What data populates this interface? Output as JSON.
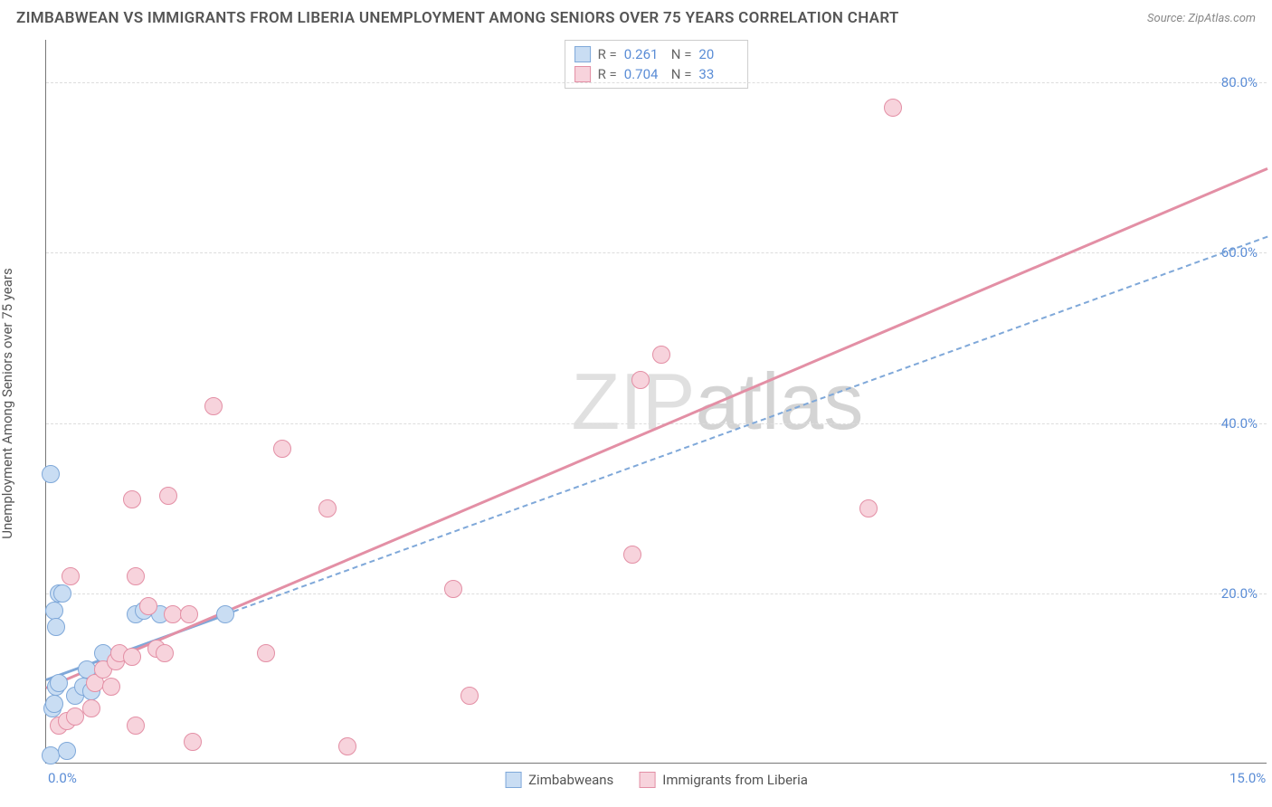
{
  "title": "ZIMBABWEAN VS IMMIGRANTS FROM LIBERIA UNEMPLOYMENT AMONG SENIORS OVER 75 YEARS CORRELATION CHART",
  "source": "Source: ZipAtlas.com",
  "y_axis_label": "Unemployment Among Seniors over 75 years",
  "watermark": {
    "bold": "ZIP",
    "light": "atlas"
  },
  "chart": {
    "type": "scatter",
    "xlim": [
      0,
      15
    ],
    "ylim": [
      0,
      85
    ],
    "x_ticks": [
      {
        "value": 0,
        "label": "0.0%"
      },
      {
        "value": 15,
        "label": "15.0%"
      }
    ],
    "y_ticks": [
      {
        "value": 20,
        "label": "20.0%"
      },
      {
        "value": 40,
        "label": "40.0%"
      },
      {
        "value": 60,
        "label": "60.0%"
      },
      {
        "value": 80,
        "label": "80.0%"
      }
    ],
    "grid_color": "#dddddd",
    "background_color": "#ffffff",
    "axis_color": "#777777",
    "tick_label_color": "#5b8dd6",
    "point_radius": 10,
    "series": [
      {
        "key": "zimbabweans",
        "label": "Zimbabweans",
        "fill": "#c9ddf3",
        "stroke": "#7fa8d9",
        "R": "0.261",
        "N": "20",
        "regression": {
          "x1": 0,
          "y1": 10,
          "x2": 15,
          "y2": 62,
          "style": "dashed",
          "solid_until_x": 2.3
        },
        "points": [
          [
            0.05,
            1.0
          ],
          [
            0.08,
            6.5
          ],
          [
            0.1,
            7.0
          ],
          [
            0.12,
            9.0
          ],
          [
            0.15,
            9.5
          ],
          [
            0.1,
            18.0
          ],
          [
            0.12,
            16.0
          ],
          [
            0.15,
            20.0
          ],
          [
            0.2,
            20.0
          ],
          [
            0.05,
            34.0
          ],
          [
            0.35,
            8.0
          ],
          [
            0.45,
            9.0
          ],
          [
            0.5,
            11.0
          ],
          [
            0.55,
            8.5
          ],
          [
            0.7,
            13.0
          ],
          [
            1.1,
            17.5
          ],
          [
            1.2,
            18.0
          ],
          [
            1.4,
            17.5
          ],
          [
            2.2,
            17.5
          ],
          [
            0.25,
            1.5
          ]
        ]
      },
      {
        "key": "liberia",
        "label": "Immigrants from Liberia",
        "fill": "#f7d3dc",
        "stroke": "#e38fa5",
        "R": "0.704",
        "N": "33",
        "regression": {
          "x1": 0,
          "y1": 9,
          "x2": 15,
          "y2": 70,
          "style": "solid"
        },
        "points": [
          [
            0.15,
            4.5
          ],
          [
            0.25,
            5.0
          ],
          [
            0.35,
            5.5
          ],
          [
            0.55,
            6.5
          ],
          [
            0.6,
            9.5
          ],
          [
            0.7,
            11.0
          ],
          [
            0.8,
            9.0
          ],
          [
            0.85,
            12.0
          ],
          [
            0.9,
            13.0
          ],
          [
            1.05,
            12.5
          ],
          [
            1.1,
            4.5
          ],
          [
            1.35,
            13.5
          ],
          [
            1.45,
            13.0
          ],
          [
            1.55,
            17.5
          ],
          [
            1.75,
            17.5
          ],
          [
            1.8,
            2.5
          ],
          [
            0.3,
            22.0
          ],
          [
            1.1,
            22.0
          ],
          [
            1.05,
            31.0
          ],
          [
            1.5,
            31.5
          ],
          [
            2.7,
            13.0
          ],
          [
            2.9,
            37.0
          ],
          [
            3.45,
            30.0
          ],
          [
            3.7,
            2.0
          ],
          [
            2.05,
            42.0
          ],
          [
            5.0,
            20.5
          ],
          [
            5.2,
            8.0
          ],
          [
            7.2,
            24.5
          ],
          [
            7.3,
            45.0
          ],
          [
            7.55,
            48.0
          ],
          [
            10.1,
            30.0
          ],
          [
            10.4,
            77.0
          ],
          [
            1.25,
            18.5
          ]
        ]
      }
    ]
  },
  "stats_labels": {
    "R": "R  =",
    "N": "N  ="
  }
}
